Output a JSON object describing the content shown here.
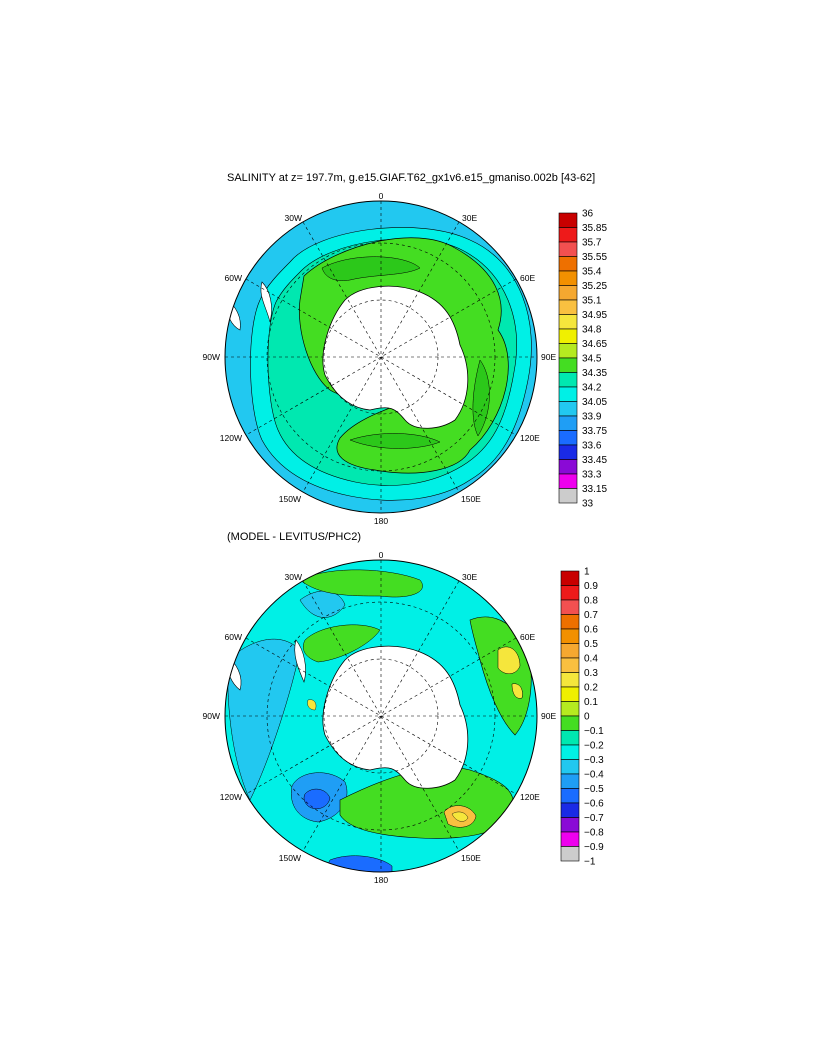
{
  "panels": [
    {
      "id": "salinity",
      "title": "SALINITY at z= 197.7m, g.e15.GIAF.T62_gx1v6.e15_gmaniso.002b [43-62]",
      "lon_labels": [
        "0",
        "30E",
        "60E",
        "90E",
        "120E",
        "150E",
        "180",
        "150W",
        "120W",
        "90W",
        "60W",
        "30W"
      ],
      "colorbar": {
        "labels": [
          "36",
          "35.85",
          "35.7",
          "35.55",
          "35.4",
          "35.25",
          "35.1",
          "34.95",
          "34.8",
          "34.65",
          "34.5",
          "34.35",
          "34.2",
          "34.05",
          "33.9",
          "33.75",
          "33.6",
          "33.45",
          "33.3",
          "33.15",
          "33"
        ],
        "colors": [
          "#c80000",
          "#ee1a1a",
          "#f25050",
          "#ee7000",
          "#f29000",
          "#f5a830",
          "#f9c040",
          "#f5e63c",
          "#f0f000",
          "#b5ea20",
          "#44dd22",
          "#00e8b0",
          "#00f0e6",
          "#22c8f0",
          "#1f9ef5",
          "#1a6cff",
          "#1a2ae6",
          "#8a0ad6",
          "#ee00ee",
          "#cccccc",
          "#6e6e6e"
        ]
      }
    },
    {
      "id": "difference",
      "title": "(MODEL - LEVITUS/PHC2)",
      "lon_labels": [
        "0",
        "30E",
        "60E",
        "90E",
        "120E",
        "150E",
        "180",
        "150W",
        "120W",
        "90W",
        "60W",
        "30W"
      ],
      "colorbar": {
        "labels": [
          "1",
          "0.9",
          "0.8",
          "0.7",
          "0.6",
          "0.5",
          "0.4",
          "0.3",
          "0.2",
          "0.1",
          "0",
          "−0.1",
          "−0.2",
          "−0.3",
          "−0.4",
          "−0.5",
          "−0.6",
          "−0.7",
          "−0.8",
          "−0.9",
          "−1"
        ],
        "colors": [
          "#c80000",
          "#ee1a1a",
          "#f25050",
          "#ee7000",
          "#f29000",
          "#f5a830",
          "#f9c040",
          "#f5e63c",
          "#f0f000",
          "#b5ea20",
          "#44dd22",
          "#00e8b0",
          "#00f0e6",
          "#22c8f0",
          "#1f9ef5",
          "#1a6cff",
          "#1a2ae6",
          "#8a0ad6",
          "#ee00ee",
          "#cccccc",
          "#6e6e6e"
        ]
      }
    }
  ]
}
